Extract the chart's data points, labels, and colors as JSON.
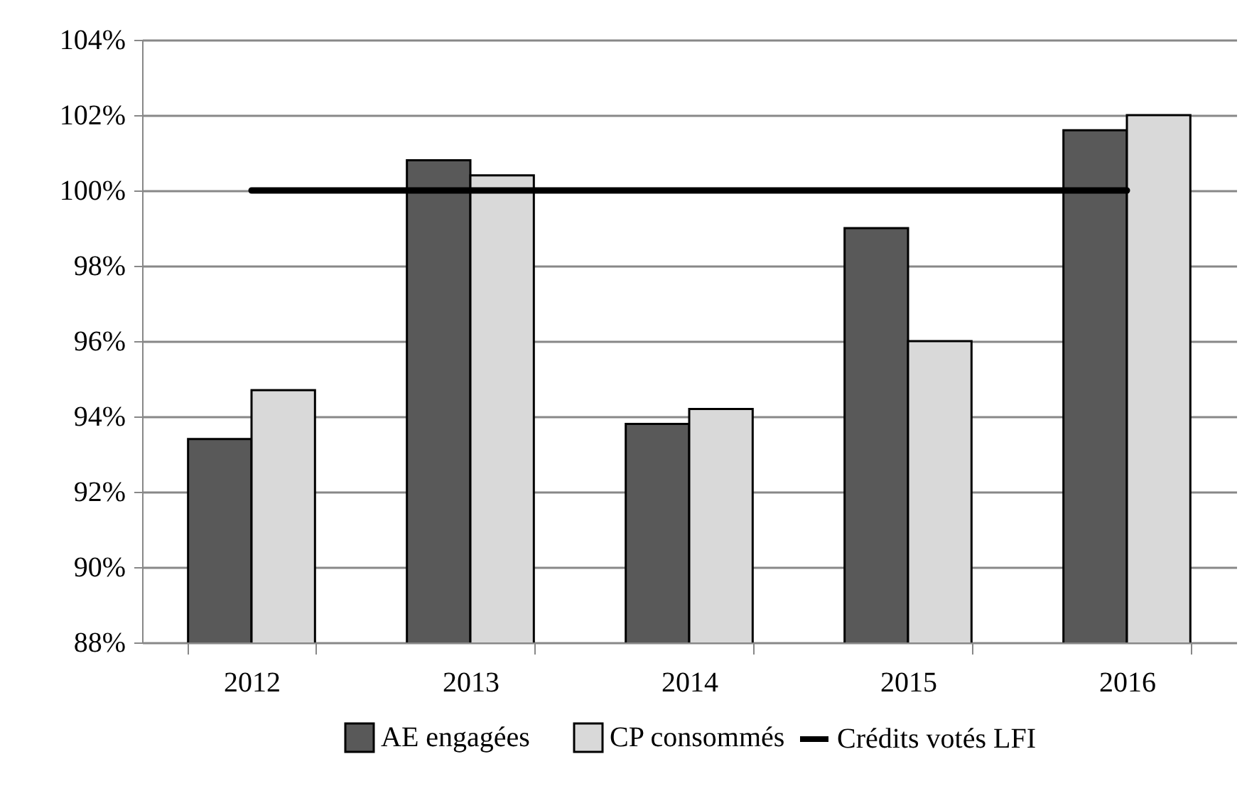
{
  "chart_data": {
    "type": "bar",
    "categories": [
      "2012",
      "2013",
      "2014",
      "2015",
      "2016"
    ],
    "series": [
      {
        "name": "AE engagées",
        "color": "#595959",
        "values": [
          93.4,
          100.8,
          93.8,
          99.0,
          101.6
        ]
      },
      {
        "name": "CP consommés",
        "color": "#d9d9d9",
        "values": [
          94.7,
          100.4,
          94.2,
          96.0,
          102.0
        ]
      },
      {
        "name": "Crédits votés LFI",
        "type": "line",
        "color": "#000000",
        "values": [
          100,
          100,
          100,
          100,
          100
        ]
      }
    ],
    "ylim": [
      88,
      104
    ],
    "yticks": [
      {
        "value": 88,
        "label": "88%"
      },
      {
        "value": 90,
        "label": "90%"
      },
      {
        "value": 92,
        "label": "92%"
      },
      {
        "value": 94,
        "label": "94%"
      },
      {
        "value": 96,
        "label": "96%"
      },
      {
        "value": 98,
        "label": "98%"
      },
      {
        "value": 100,
        "label": "100%"
      },
      {
        "value": 102,
        "label": "102%"
      },
      {
        "value": 104,
        "label": "104%"
      }
    ],
    "grid": "y",
    "legend": "bottom",
    "line_style": "solid",
    "marker": "none"
  }
}
